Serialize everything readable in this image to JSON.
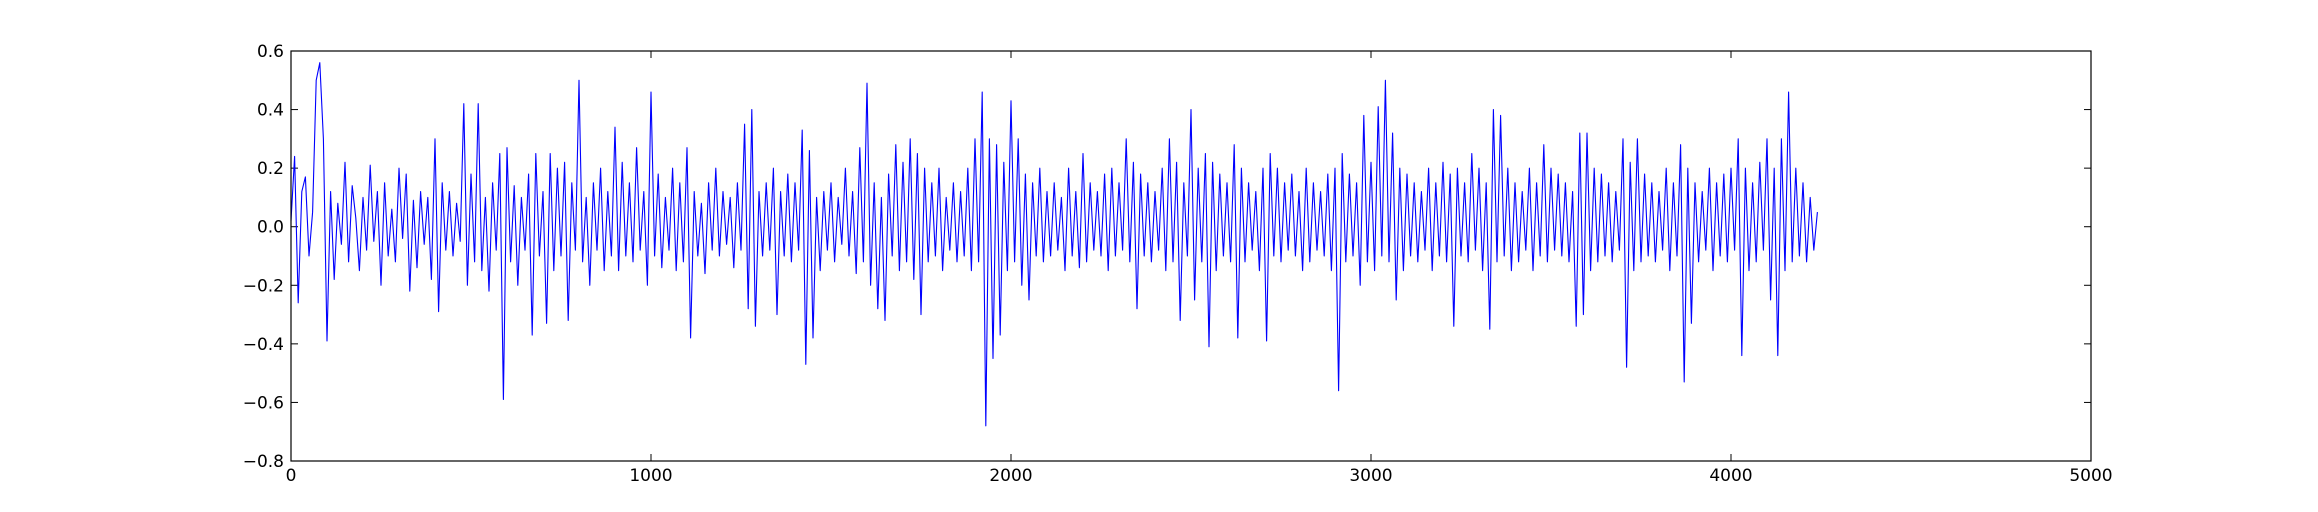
{
  "chart_data": {
    "type": "line",
    "title": "",
    "xlabel": "",
    "ylabel": "",
    "xlim": [
      0,
      5000
    ],
    "ylim": [
      -0.8,
      0.6
    ],
    "x_ticks": [
      0,
      1000,
      2000,
      3000,
      4000,
      5000
    ],
    "x_tick_labels": [
      "0",
      "1000",
      "2000",
      "3000",
      "4000",
      "5000"
    ],
    "y_ticks": [
      0.6,
      0.4,
      0.2,
      0.0,
      -0.2,
      -0.4,
      -0.6,
      -0.8
    ],
    "y_tick_labels": [
      "0.6",
      "0.4",
      "0.2",
      "0.0",
      "−0.2",
      "−0.4",
      "−0.6",
      "−0.8"
    ],
    "grid": false,
    "legend": "none",
    "color": "#0000ff",
    "series": [
      {
        "x_start": 0,
        "x_step": 10,
        "note_points": "dense noise series, sampled every 10 units; noticeable spikes preserved",
        "values": [
          0.02,
          0.24,
          -0.26,
          0.12,
          0.17,
          -0.1,
          0.05,
          0.5,
          0.56,
          0.3,
          -0.39,
          0.12,
          -0.18,
          0.08,
          -0.06,
          0.22,
          -0.12,
          0.14,
          0.03,
          -0.15,
          0.1,
          -0.08,
          0.21,
          -0.05,
          0.12,
          -0.2,
          0.15,
          -0.1,
          0.06,
          -0.12,
          0.2,
          -0.04,
          0.18,
          -0.22,
          0.09,
          -0.14,
          0.12,
          -0.06,
          0.1,
          -0.18,
          0.3,
          -0.29,
          0.15,
          -0.08,
          0.12,
          -0.1,
          0.08,
          -0.05,
          0.42,
          -0.2,
          0.18,
          -0.12,
          0.42,
          -0.15,
          0.1,
          -0.22,
          0.15,
          -0.08,
          0.25,
          -0.59,
          0.27,
          -0.12,
          0.14,
          -0.2,
          0.1,
          -0.08,
          0.18,
          -0.37,
          0.25,
          -0.1,
          0.12,
          -0.33,
          0.25,
          -0.15,
          0.2,
          -0.1,
          0.22,
          -0.32,
          0.15,
          -0.08,
          0.5,
          -0.12,
          0.1,
          -0.2,
          0.15,
          -0.08,
          0.2,
          -0.15,
          0.12,
          -0.1,
          0.34,
          -0.15,
          0.22,
          -0.1,
          0.15,
          -0.12,
          0.27,
          -0.08,
          0.12,
          -0.2,
          0.46,
          -0.1,
          0.18,
          -0.14,
          0.1,
          -0.08,
          0.2,
          -0.15,
          0.15,
          -0.12,
          0.27,
          -0.38,
          0.12,
          -0.1,
          0.08,
          -0.16,
          0.15,
          -0.08,
          0.2,
          -0.1,
          0.12,
          -0.06,
          0.1,
          -0.14,
          0.15,
          -0.08,
          0.35,
          -0.28,
          0.4,
          -0.34,
          0.12,
          -0.1,
          0.15,
          -0.08,
          0.2,
          -0.3,
          0.12,
          -0.1,
          0.18,
          -0.12,
          0.15,
          -0.08,
          0.33,
          -0.47,
          0.26,
          -0.38,
          0.1,
          -0.15,
          0.12,
          -0.08,
          0.15,
          -0.12,
          0.1,
          -0.06,
          0.2,
          -0.1,
          0.12,
          -0.16,
          0.27,
          -0.12,
          0.49,
          -0.2,
          0.15,
          -0.28,
          0.1,
          -0.32,
          0.18,
          -0.1,
          0.28,
          -0.15,
          0.22,
          -0.12,
          0.3,
          -0.18,
          0.25,
          -0.3,
          0.2,
          -0.12,
          0.15,
          -0.1,
          0.2,
          -0.15,
          0.1,
          -0.08,
          0.15,
          -0.12,
          0.12,
          -0.1,
          0.2,
          -0.15,
          0.3,
          -0.12,
          0.46,
          -0.68,
          0.3,
          -0.45,
          0.28,
          -0.37,
          0.22,
          -0.15,
          0.43,
          -0.12,
          0.3,
          -0.2,
          0.18,
          -0.25,
          0.15,
          -0.1,
          0.2,
          -0.12,
          0.12,
          -0.1,
          0.15,
          -0.08,
          0.1,
          -0.15,
          0.2,
          -0.1,
          0.12,
          -0.14,
          0.25,
          -0.12,
          0.15,
          -0.08,
          0.12,
          -0.1,
          0.18,
          -0.15,
          0.2,
          -0.1,
          0.15,
          -0.08,
          0.3,
          -0.12,
          0.22,
          -0.28,
          0.18,
          -0.1,
          0.15,
          -0.12,
          0.12,
          -0.08,
          0.2,
          -0.15,
          0.3,
          -0.12,
          0.22,
          -0.32,
          0.15,
          -0.1,
          0.4,
          -0.25,
          0.2,
          -0.12,
          0.25,
          -0.41,
          0.22,
          -0.15,
          0.18,
          -0.1,
          0.15,
          -0.12,
          0.28,
          -0.38,
          0.2,
          -0.12,
          0.15,
          -0.08,
          0.12,
          -0.15,
          0.2,
          -0.39,
          0.25,
          -0.1,
          0.2,
          -0.12,
          0.15,
          -0.08,
          0.18,
          -0.1,
          0.12,
          -0.15,
          0.2,
          -0.12,
          0.15,
          -0.08,
          0.12,
          -0.1,
          0.18,
          -0.15,
          0.2,
          -0.56,
          0.25,
          -0.12,
          0.18,
          -0.1,
          0.15,
          -0.2,
          0.38,
          -0.12,
          0.22,
          -0.15,
          0.41,
          -0.1,
          0.5,
          -0.12,
          0.32,
          -0.25,
          0.2,
          -0.15,
          0.18,
          -0.1,
          0.15,
          -0.12,
          0.12,
          -0.08,
          0.2,
          -0.15,
          0.15,
          -0.1,
          0.22,
          -0.12,
          0.18,
          -0.34,
          0.2,
          -0.1,
          0.15,
          -0.12,
          0.25,
          -0.08,
          0.2,
          -0.15,
          0.15,
          -0.35,
          0.4,
          -0.12,
          0.38,
          -0.1,
          0.2,
          -0.15,
          0.15,
          -0.12,
          0.12,
          -0.08,
          0.2,
          -0.15,
          0.15,
          -0.1,
          0.28,
          -0.12,
          0.2,
          -0.08,
          0.18,
          -0.1,
          0.15,
          -0.12,
          0.12,
          -0.34,
          0.32,
          -0.3,
          0.32,
          -0.15,
          0.2,
          -0.12,
          0.18,
          -0.1,
          0.15,
          -0.12,
          0.12,
          -0.08,
          0.3,
          -0.48,
          0.22,
          -0.15,
          0.3,
          -0.12,
          0.18,
          -0.1,
          0.15,
          -0.12,
          0.12,
          -0.08,
          0.2,
          -0.15,
          0.15,
          -0.1,
          0.28,
          -0.53,
          0.2,
          -0.33,
          0.15,
          -0.12,
          0.12,
          -0.08,
          0.2,
          -0.15,
          0.15,
          -0.1,
          0.18,
          -0.12,
          0.2,
          -0.08,
          0.3,
          -0.44,
          0.2,
          -0.15,
          0.15,
          -0.12,
          0.22,
          -0.08,
          0.3,
          -0.25,
          0.2,
          -0.44,
          0.3,
          -0.15,
          0.46,
          -0.12,
          0.2,
          -0.1,
          0.15,
          -0.12,
          0.1,
          -0.08,
          0.05
        ]
      }
    ]
  }
}
